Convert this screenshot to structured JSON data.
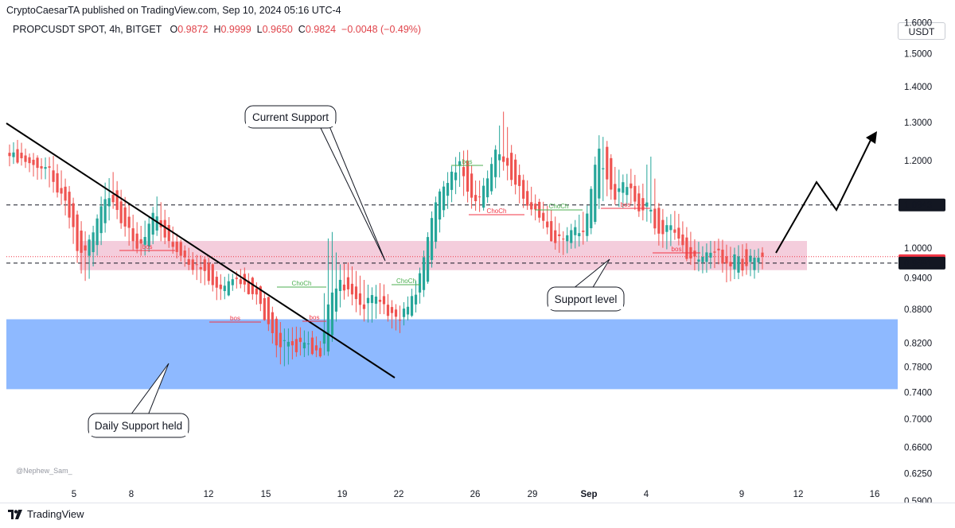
{
  "header": {
    "publisher_line": "CryptoCaesarTA published on TradingView.com, Sep 10, 2024 05:16 UTC-4"
  },
  "symbol": {
    "name": "PROPCUSDT SPOT, 4h, BITGET",
    "open_label": "O",
    "open": "0.9872",
    "high_label": "H",
    "high": "0.9999",
    "low_label": "L",
    "low": "0.9650",
    "close_label": "C",
    "close": "0.9824",
    "change": "−0.0048 (−0.49%)"
  },
  "currency": "USDT",
  "footer": {
    "brand": "TradingView"
  },
  "colors": {
    "up": "#26a69a",
    "down": "#ef5350",
    "pink_zone": "#f2c4d6",
    "blue_zone": "#82b1ff",
    "price_tag": "#f23645",
    "axis_text": "#131722"
  },
  "chart_data": {
    "type": "candlestick",
    "y_axis": {
      "scale": "log",
      "ticks": [
        "1.6000",
        "1.5000",
        "1.4000",
        "1.3000",
        "1.2000",
        "1.1000",
        "1.0000",
        "0.9400",
        "0.8800",
        "0.8200",
        "0.7800",
        "0.7400",
        "0.7000",
        "0.6600",
        "0.6250",
        "0.5900"
      ]
    },
    "x_axis": {
      "ticks": [
        "5",
        "8",
        "12",
        "15",
        "19",
        "22",
        "26",
        "29",
        "Sep",
        "4",
        "9",
        "12",
        "16"
      ]
    },
    "price_labels": [
      {
        "text": "1.0943",
        "value": 1.0943,
        "style": "black"
      },
      {
        "text": "02:43:51",
        "value": 0.974,
        "style": "countdown"
      },
      {
        "text": "0.9691",
        "value": 0.9691,
        "style": "black"
      }
    ],
    "zones": [
      {
        "name": "current-support-zone",
        "from": 0.955,
        "to": 1.015,
        "color": "pink"
      },
      {
        "name": "daily-support-zone",
        "from": 0.745,
        "to": 0.862,
        "color": "blue"
      }
    ],
    "dashed_levels": [
      1.0943,
      0.9691
    ],
    "dotted_level": 0.9824,
    "callouts": [
      {
        "text": "Current Support"
      },
      {
        "text": "Support level"
      },
      {
        "text": "Daily Support held"
      }
    ],
    "markers": [
      "bos",
      "bos",
      "bos",
      "ChoCh",
      "ChoCh",
      "ChoCh",
      "ChoCh",
      "bos",
      "bos",
      "bos"
    ],
    "watermark": "@Nephew_Sam_",
    "candles_anchor": [
      [
        1.22,
        1.24,
        1.19,
        1.23
      ],
      [
        1.23,
        1.25,
        1.2,
        1.21
      ],
      [
        1.21,
        1.22,
        1.18,
        1.2
      ],
      [
        1.2,
        1.21,
        1.16,
        1.18
      ],
      [
        1.18,
        1.2,
        1.16,
        1.19
      ],
      [
        1.19,
        1.21,
        1.13,
        1.15
      ],
      [
        1.15,
        1.17,
        1.1,
        1.12
      ],
      [
        1.12,
        1.13,
        1.04,
        1.06
      ],
      [
        1.06,
        1.07,
        0.96,
        0.98
      ],
      [
        0.98,
        1.02,
        0.93,
        1.0
      ],
      [
        1.0,
        1.06,
        0.98,
        1.05
      ],
      [
        1.05,
        1.14,
        1.03,
        1.12
      ],
      [
        1.12,
        1.17,
        1.09,
        1.1
      ],
      [
        1.1,
        1.12,
        1.04,
        1.06
      ],
      [
        1.06,
        1.08,
        1.0,
        1.02
      ],
      [
        1.02,
        1.04,
        0.99,
        1.0
      ],
      [
        1.0,
        1.06,
        0.99,
        1.05
      ],
      [
        1.05,
        1.11,
        1.03,
        1.07
      ],
      [
        1.07,
        1.08,
        1.01,
        1.02
      ],
      [
        1.02,
        1.04,
        0.99,
        1.0
      ],
      [
        1.0,
        1.01,
        0.97,
        0.98
      ],
      [
        0.98,
        0.99,
        0.95,
        0.96
      ],
      [
        0.96,
        0.98,
        0.93,
        0.97
      ],
      [
        0.97,
        0.98,
        0.93,
        0.94
      ],
      [
        0.94,
        0.95,
        0.9,
        0.91
      ],
      [
        0.91,
        0.94,
        0.9,
        0.93
      ],
      [
        0.93,
        0.95,
        0.92,
        0.94
      ],
      [
        0.94,
        0.96,
        0.92,
        0.93
      ],
      [
        0.93,
        0.94,
        0.9,
        0.91
      ],
      [
        0.91,
        0.92,
        0.88,
        0.89
      ],
      [
        0.89,
        0.9,
        0.84,
        0.85
      ],
      [
        0.85,
        0.86,
        0.79,
        0.81
      ],
      [
        0.81,
        0.84,
        0.78,
        0.83
      ],
      [
        0.83,
        0.85,
        0.8,
        0.81
      ],
      [
        0.81,
        0.84,
        0.8,
        0.83
      ],
      [
        0.83,
        0.84,
        0.8,
        0.81
      ],
      [
        0.81,
        0.82,
        0.8,
        0.805
      ],
      [
        0.805,
        1.06,
        0.8,
        0.9
      ],
      [
        0.9,
        0.96,
        0.88,
        0.94
      ],
      [
        0.94,
        0.97,
        0.91,
        0.92
      ],
      [
        0.92,
        0.95,
        0.88,
        0.9
      ],
      [
        0.9,
        0.93,
        0.86,
        0.88
      ],
      [
        0.88,
        0.92,
        0.86,
        0.91
      ],
      [
        0.91,
        0.93,
        0.88,
        0.89
      ],
      [
        0.89,
        0.9,
        0.85,
        0.86
      ],
      [
        0.86,
        0.88,
        0.84,
        0.87
      ],
      [
        0.87,
        0.9,
        0.86,
        0.89
      ],
      [
        0.89,
        0.93,
        0.88,
        0.92
      ],
      [
        0.92,
        1.0,
        0.91,
        0.99
      ],
      [
        0.99,
        1.1,
        0.98,
        1.09
      ],
      [
        1.09,
        1.14,
        1.06,
        1.13
      ],
      [
        1.13,
        1.18,
        1.1,
        1.17
      ],
      [
        1.17,
        1.22,
        1.14,
        1.2
      ],
      [
        1.2,
        1.22,
        1.1,
        1.12
      ],
      [
        1.12,
        1.14,
        1.08,
        1.1
      ],
      [
        1.1,
        1.16,
        1.09,
        1.15
      ],
      [
        1.15,
        1.22,
        1.13,
        1.21
      ],
      [
        1.21,
        1.33,
        1.18,
        1.22
      ],
      [
        1.22,
        1.24,
        1.14,
        1.16
      ],
      [
        1.16,
        1.18,
        1.1,
        1.12
      ],
      [
        1.12,
        1.14,
        1.08,
        1.09
      ],
      [
        1.09,
        1.11,
        1.06,
        1.07
      ],
      [
        1.07,
        1.09,
        1.04,
        1.05
      ],
      [
        1.05,
        1.07,
        1.0,
        1.01
      ],
      [
        1.01,
        1.03,
        0.99,
        1.02
      ],
      [
        1.02,
        1.05,
        1.0,
        1.04
      ],
      [
        1.04,
        1.07,
        1.01,
        1.03
      ],
      [
        1.03,
        1.1,
        1.02,
        1.09
      ],
      [
        1.09,
        1.26,
        1.08,
        1.24
      ],
      [
        1.24,
        1.25,
        1.12,
        1.14
      ],
      [
        1.14,
        1.18,
        1.1,
        1.12
      ],
      [
        1.12,
        1.16,
        1.09,
        1.15
      ],
      [
        1.15,
        1.18,
        1.1,
        1.11
      ],
      [
        1.11,
        1.12,
        1.06,
        1.08
      ],
      [
        1.08,
        1.22,
        1.06,
        1.09
      ],
      [
        1.09,
        1.1,
        1.01,
        1.03
      ],
      [
        1.03,
        1.06,
        1.0,
        1.05
      ],
      [
        1.05,
        1.08,
        1.02,
        1.03
      ],
      [
        1.03,
        1.05,
        0.99,
        1.0
      ],
      [
        1.0,
        1.02,
        0.96,
        0.97
      ],
      [
        0.97,
        1.0,
        0.95,
        0.98
      ],
      [
        0.98,
        1.01,
        0.96,
        1.0
      ],
      [
        1.0,
        1.02,
        0.97,
        0.98
      ],
      [
        0.98,
        1.0,
        0.93,
        0.95
      ],
      [
        0.95,
        1.0,
        0.94,
        0.99
      ],
      [
        0.99,
        1.01,
        0.95,
        0.96
      ],
      [
        0.96,
        0.99,
        0.94,
        0.98
      ],
      [
        0.98,
        1.0,
        0.96,
        0.9824
      ]
    ]
  }
}
